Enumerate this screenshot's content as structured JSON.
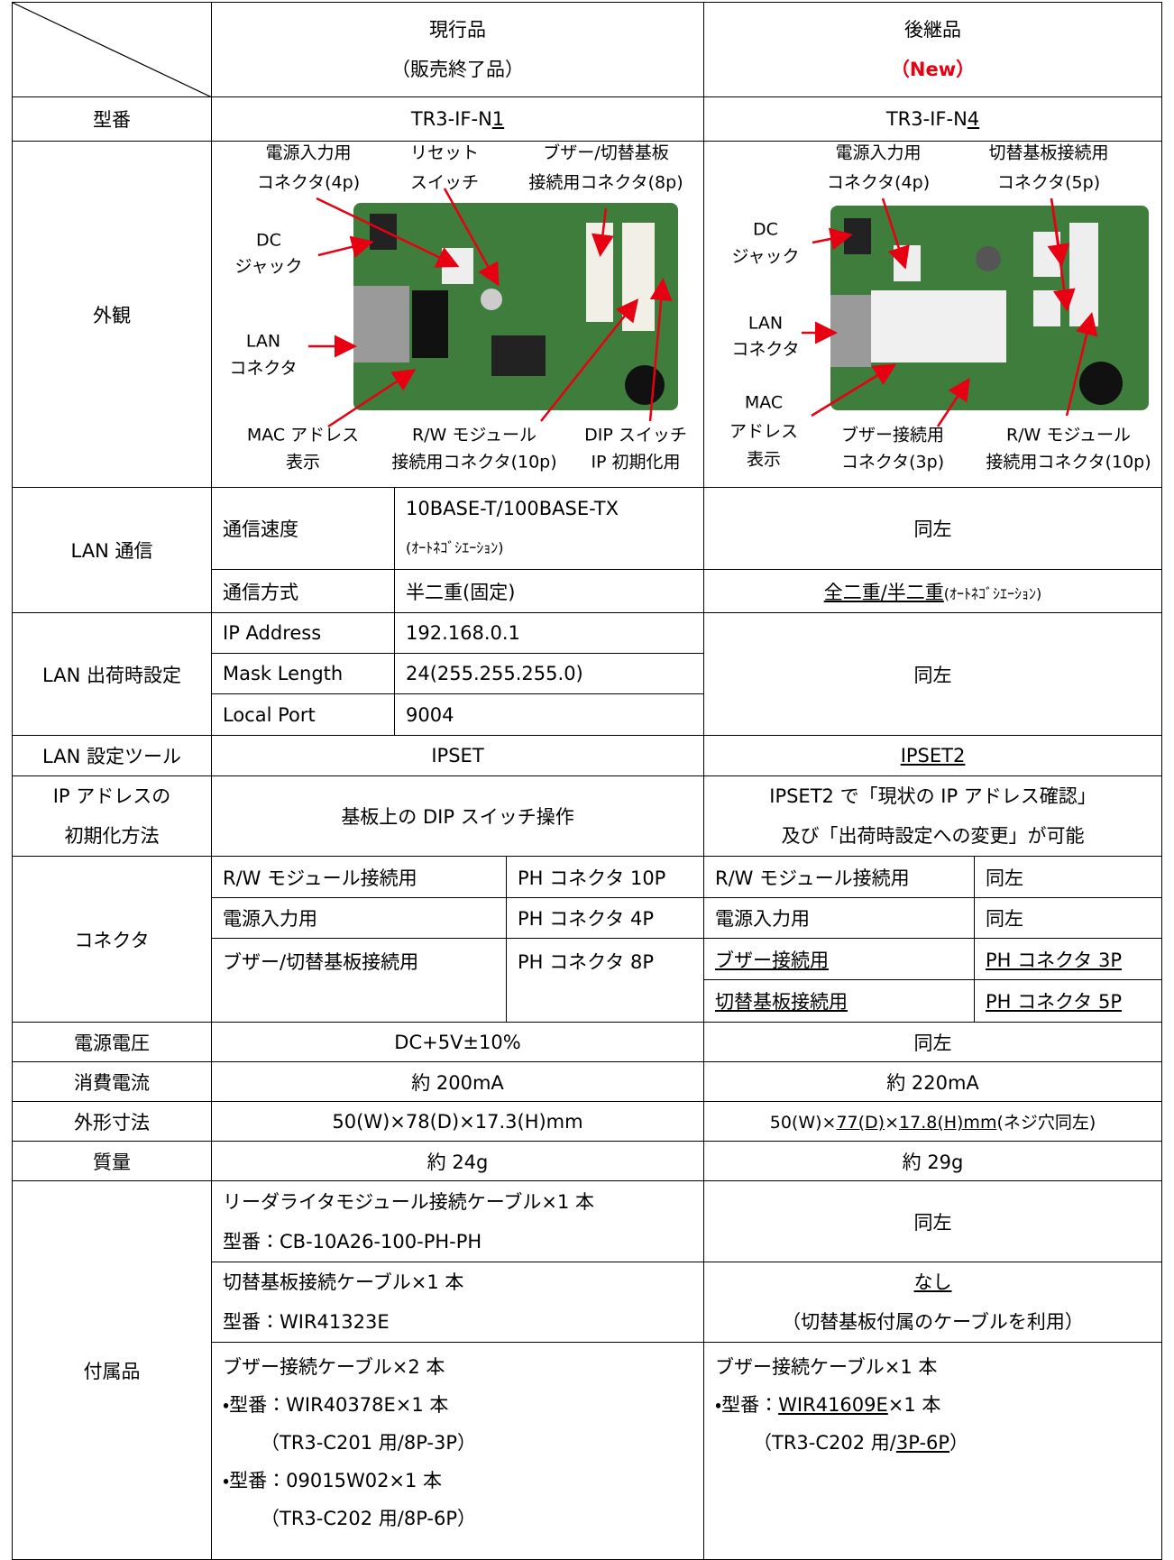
{
  "header": {
    "current": [
      "現行品",
      "（販売終了品）"
    ],
    "successor": [
      "後継品",
      "（New）"
    ]
  },
  "model": {
    "label": "型番",
    "current": [
      "TR3-IF-N",
      "1"
    ],
    "successor": [
      "TR3-IF-N",
      "4"
    ]
  },
  "appearance": {
    "label": "外観",
    "current": [
      [
        "電源入力用",
        "コネクタ(4p)"
      ],
      [
        "リセット",
        "スイッチ"
      ],
      [
        "ブザー/切替基板",
        "接続用コネクタ(8p)"
      ],
      [
        "DC",
        "ジャック"
      ],
      [
        "LAN",
        "コネクタ"
      ],
      [
        "MAC アドレス",
        "表示"
      ],
      [
        "R/W モジュール",
        "接続用コネクタ(10p)"
      ],
      [
        "DIP スイッチ",
        "IP 初期化用"
      ]
    ],
    "successor": [
      [
        "電源入力用",
        "コネクタ(4p)"
      ],
      [
        "切替基板接続用",
        "コネクタ(5p)"
      ],
      [
        "DC",
        "ジャック"
      ],
      [
        "LAN",
        "コネクタ"
      ],
      [
        "MAC",
        "アドレス",
        "表示"
      ],
      [
        "ブザー接続用",
        "コネクタ(3p)"
      ],
      [
        "R/W モジュール",
        "接続用コネクタ(10p)"
      ]
    ]
  },
  "lan_comm": {
    "label": "LAN 通信",
    "items": [
      {
        "name": "通信速度",
        "current": [
          "10BASE-T/100BASE-TX",
          "(ｵｰﾄﾈｺﾞｼｴｰｼｮﾝ)"
        ]
      },
      {
        "name": "通信方式",
        "current": "半二重(固定)"
      }
    ],
    "successor_speed": "同左",
    "successor_method": [
      "全二重/半二重",
      "(ｵｰﾄﾈｺﾞｼｴｰｼｮﾝ)"
    ]
  },
  "lan_default": {
    "label": "LAN 出荷時設定",
    "items": [
      [
        "IP Address",
        "192.168.0.1"
      ],
      [
        "Mask Length",
        "24(255.255.255.0)"
      ],
      [
        "Local Port",
        "9004"
      ]
    ],
    "successor": "同左"
  },
  "tool": {
    "label": "LAN 設定ツール",
    "current": "IPSET",
    "successor": "IPSET2"
  },
  "ip_init": {
    "label": [
      "IP アドレスの",
      "初期化方法"
    ],
    "current": "基板上の DIP スイッチ操作",
    "successor": [
      "IPSET2 で「現状の IP アドレス確認」",
      "及び「出荷時設定への変更」が可能"
    ]
  },
  "connector": {
    "label": "コネクタ",
    "current": [
      [
        "R/W モジュール接続用",
        "PH コネクタ 10P"
      ],
      [
        "電源入力用",
        "PH コネクタ 4P"
      ],
      [
        "ブザー/切替基板接続用",
        "PH コネクタ 8P"
      ]
    ],
    "successor": [
      [
        "R/W モジュール接続用",
        "同左"
      ],
      [
        "電源入力用",
        "同左"
      ],
      [
        "ブザー接続用",
        "PH コネクタ 3P"
      ],
      [
        "切替基板接続用",
        "PH コネクタ 5P"
      ]
    ]
  },
  "power": {
    "label": "電源電圧",
    "current": "DC+5V±10%",
    "successor": "同左"
  },
  "consumption": {
    "label": "消費電流",
    "current": "約 200mA",
    "successor": "約 220mA"
  },
  "dimensions": {
    "label": "外形寸法",
    "current": "50(W)×78(D)×17.3(H)mm",
    "successor": [
      "50(W)×",
      "77(D)",
      "×",
      "17.8(H)mm",
      "(ネジ穴同左)"
    ]
  },
  "mass": {
    "label": "質量",
    "current": "約 24g",
    "successor": "約 29g"
  },
  "accessories": {
    "label": "付属品",
    "current": [
      [
        "リーダライタモジュール接続ケーブル×1 本",
        "型番：CB-10A26-100-PH-PH"
      ],
      [
        "切替基板接続ケーブル×1 本",
        "型番：WIR41323E"
      ],
      [
        "ブザー接続ケーブル×2 本",
        "・型番：WIR40378E×1 本",
        "（TR3-C201 用/8P-3P）",
        "・型番：09015W02×1 本",
        "（TR3-C202 用/8P-6P）"
      ]
    ],
    "successor": [
      "同左",
      [
        "なし",
        "（切替基板付属のケーブルを利用）"
      ],
      [
        "ブザー接続ケーブル×1 本",
        [
          "・型番：",
          "WIR41609E",
          "×1 本"
        ],
        [
          "（TR3-C202 用/",
          "3P-6P",
          "）"
        ]
      ]
    ]
  }
}
